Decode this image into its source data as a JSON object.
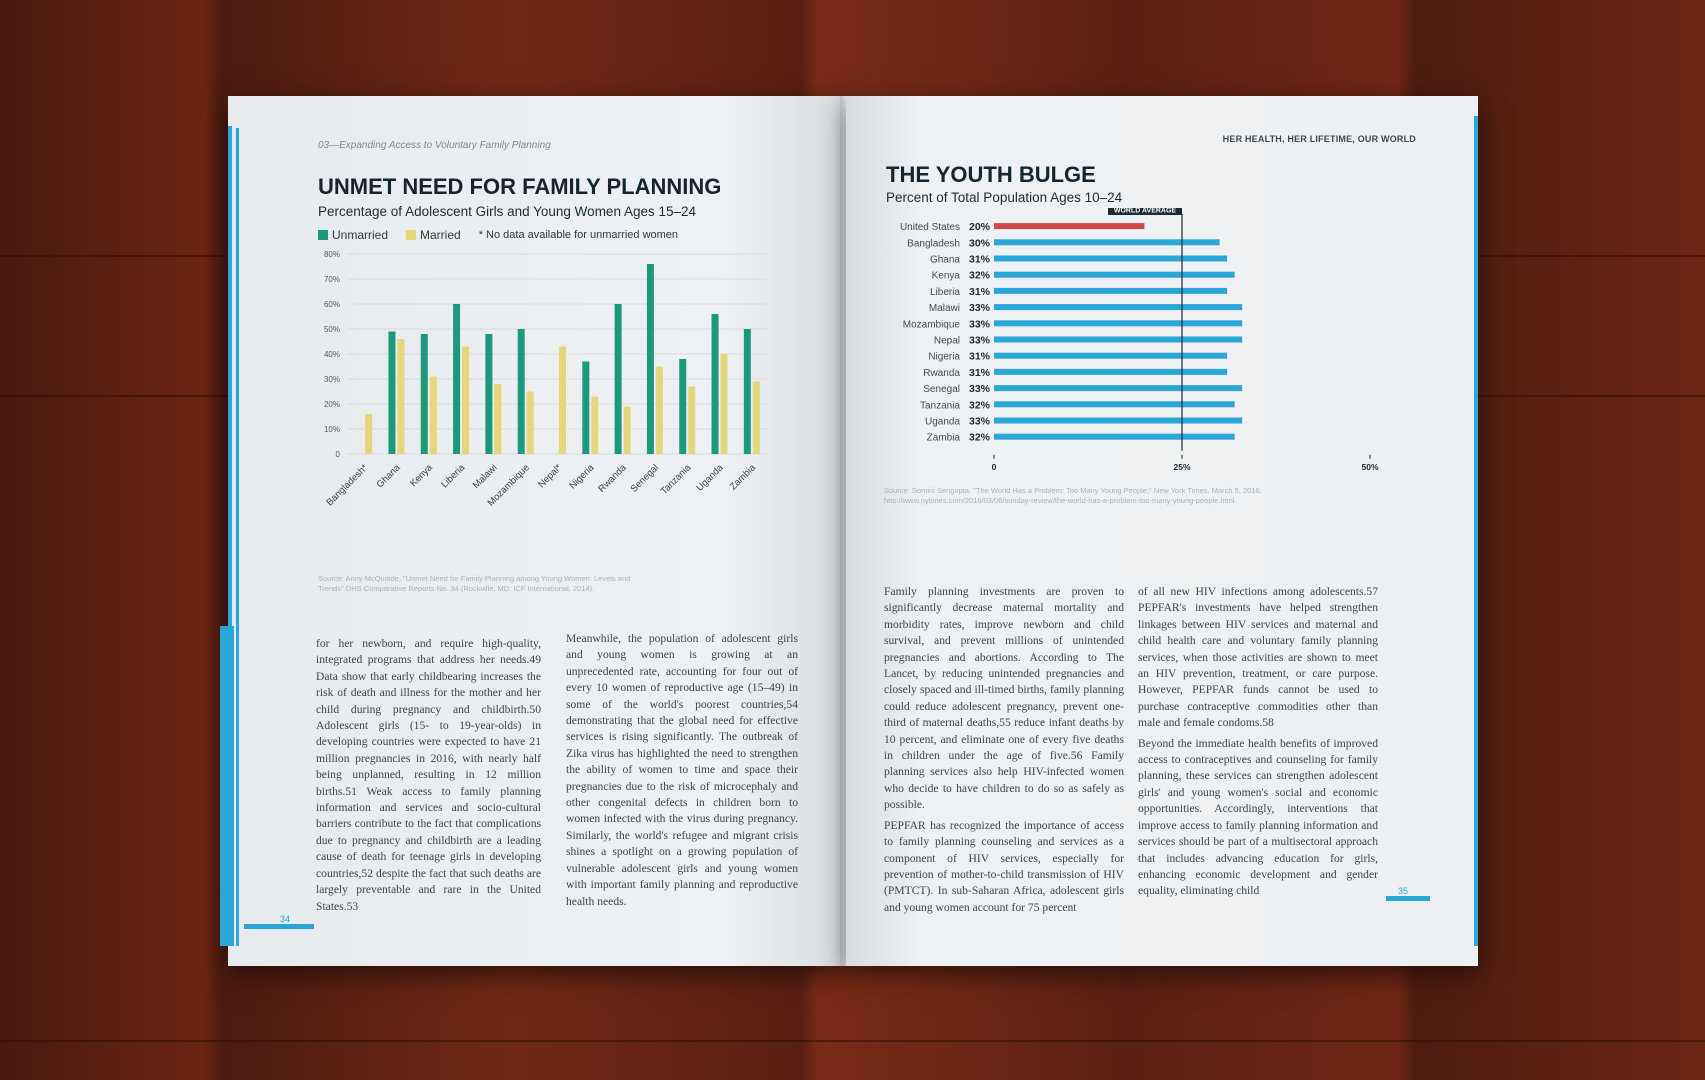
{
  "left_page": {
    "running_head": "03—Expanding Access to Voluntary Family Planning",
    "title": "UNMET NEED FOR FAMILY PLANNING",
    "subtitle": "Percentage of Adolescent Girls and Young Women Ages 15–24",
    "legend": {
      "unmarried": "Unmarried",
      "married": "Married",
      "note": "* No data available for unmarried women"
    },
    "source": "Source: Anny McQuaide, \"Unmet Need for Family Planning among Young Women: Levels and Trends\" DHS Comparative Reports No. 34 (Rockville, MD: ICF International, 2014).",
    "col1": "for her newborn, and require high-quality, integrated programs that address her needs.49 Data show that early childbearing increases the risk of death and illness for the mother and her child during pregnancy and childbirth.50 Adolescent girls (15- to 19-year-olds) in developing countries were expected to have 21 million pregnancies in 2016, with nearly half being unplanned, resulting in 12 million births.51 Weak access to family planning information and services and socio-cultural barriers contribute to the fact that complications due to pregnancy and childbirth are a leading cause of death for teenage girls in developing countries,52 despite the fact that such deaths are largely preventable and rare in the United States.53",
    "col2": "Meanwhile, the population of adolescent girls and young women is growing at an unprecedented rate, accounting for four out of every 10 women of reproductive age (15–49) in some of the world's poorest countries,54 demonstrating that the global need for effective services is rising significantly. The outbreak of Zika virus has highlighted the need to strengthen the ability of women to time and space their pregnancies due to the risk of microcephaly and other congenital defects in children born to women infected with the virus during pregnancy. Similarly, the world's refugee and migrant crisis shines a spotlight on a growing population of vulnerable adolescent girls and young women with important family planning and reproductive health needs.",
    "folio": "34"
  },
  "right_page": {
    "running_head": "HER HEALTH, HER LIFETIME, OUR WORLD",
    "title": "THE YOUTH BULGE",
    "subtitle": "Percent of Total Population Ages 10–24",
    "world_average_label": "WORLD AVERAGE",
    "source": "Source: Somini Sengupta, \"The World Has a Problem: Too Many Young People,\" New York Times, March 5, 2016, http://www.nytimes.com/2016/03/06/sunday-review/the-world-has-a-problem-too-many-young-people.html",
    "col1": [
      "Family planning investments are proven to significantly decrease maternal mortality and morbidity rates, improve newborn and child survival, and prevent millions of unintended pregnancies and abortions. According to The Lancet, by reducing unintended pregnancies and closely spaced and ill-timed births, family planning could reduce adolescent pregnancy, prevent one-third of maternal deaths,55 reduce infant deaths by 10 percent, and eliminate one of every five deaths in children under the age of five.56 Family planning services also help HIV-infected women who decide to have children to do so as safely as possible.",
      "PEPFAR has recognized the importance of access to family planning counseling and services as a component of HIV services, especially for prevention of mother-to-child transmission of HIV (PMTCT). In sub-Saharan Africa, adolescent girls and young women account for 75 percent"
    ],
    "col2": [
      "of all new HIV infections among adolescents.57 PEPFAR's investments have helped strengthen linkages between HIV services and maternal and child health care and voluntary family planning services, when those activities are shown to meet an HIV prevention, treatment, or care purpose. However, PEPFAR funds cannot be used to purchase contraceptive commodities other than male and female condoms.58",
      "Beyond the immediate health benefits of improved access to contraceptives and counseling for family planning, these services can strengthen adolescent girls' and young women's social and economic opportunities. Accordingly, interventions that improve access to family planning information and services should be part of a multisectoral approach that includes advancing education for girls, enhancing economic development and gender equality, eliminating child"
    ],
    "folio": "35"
  },
  "chart_data": [
    {
      "type": "bar",
      "title": "UNMET NEED FOR FAMILY PLANNING",
      "subtitle": "Percentage of Adolescent Girls and Young Women Ages 15–24",
      "categories": [
        "Bangladesh*",
        "Ghana",
        "Kenya",
        "Liberia",
        "Malawi",
        "Mozambique",
        "Nepal*",
        "Nigeria",
        "Rwanda",
        "Senegal",
        "Tanzania",
        "Uganda",
        "Zambia"
      ],
      "series": [
        {
          "name": "Unmarried",
          "color": "#1a9a7a",
          "values": [
            null,
            49,
            48,
            60,
            48,
            50,
            null,
            37,
            60,
            76,
            38,
            56,
            50
          ]
        },
        {
          "name": "Married",
          "color": "#e6d67a",
          "values": [
            16,
            46,
            31,
            43,
            28,
            25,
            43,
            23,
            19,
            35,
            27,
            40,
            29
          ]
        }
      ],
      "y_ticks": [
        "0",
        "10%",
        "20%",
        "30%",
        "40%",
        "50%",
        "60%",
        "70%",
        "80%"
      ],
      "ylim": [
        0,
        80
      ],
      "grid": true,
      "legend_position": "top-left"
    },
    {
      "type": "bar",
      "orientation": "horizontal",
      "title": "THE YOUTH BULGE",
      "subtitle": "Percent of Total Population Ages 10–24",
      "categories": [
        "United States",
        "Bangladesh",
        "Ghana",
        "Kenya",
        "Liberia",
        "Malawi",
        "Mozambique",
        "Nepal",
        "Nigeria",
        "Rwanda",
        "Senegal",
        "Tanzania",
        "Uganda",
        "Zambia"
      ],
      "value_labels": [
        "20%",
        "30%",
        "31%",
        "32%",
        "31%",
        "33%",
        "33%",
        "33%",
        "31%",
        "31%",
        "33%",
        "32%",
        "33%",
        "32%"
      ],
      "values": [
        20,
        30,
        31,
        32,
        31,
        33,
        33,
        33,
        31,
        31,
        33,
        32,
        33,
        32
      ],
      "highlight_color": "#d14a4a",
      "bar_color": "#2aa7d6",
      "x_ticks": [
        "0",
        "25%",
        "50%"
      ],
      "xlim": [
        0,
        50
      ],
      "reference_line": {
        "label": "WORLD AVERAGE",
        "value": 25
      }
    }
  ]
}
